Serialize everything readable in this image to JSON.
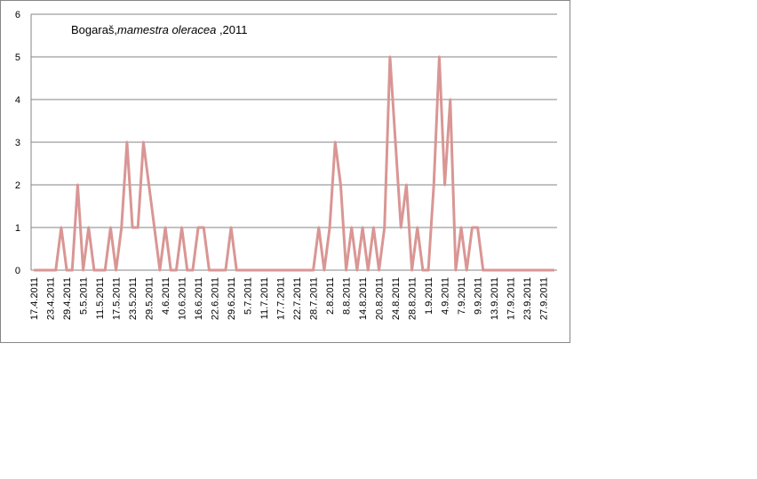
{
  "chart_data": {
    "type": "line",
    "title": [
      "Bogaraš,",
      "mamestra oleracea",
      " ,2011"
    ],
    "categories": [
      "17.4.2011",
      null,
      null,
      "23.4.2011",
      null,
      null,
      "29.4.2011",
      null,
      null,
      "5.5.2011",
      null,
      null,
      "11.5.2011",
      null,
      null,
      "17.5.2011",
      null,
      null,
      "23.5.2011",
      null,
      null,
      "29.5.2011",
      null,
      null,
      "4.6.2011",
      null,
      null,
      "10.6.2011",
      null,
      null,
      "16.6.2011",
      null,
      null,
      "22.6.2011",
      null,
      null,
      "29.6.2011",
      null,
      null,
      "5.7.2011",
      null,
      null,
      "11.7.2011",
      null,
      null,
      "17.7.2011",
      null,
      null,
      "22.7.2011",
      null,
      null,
      "28.7.2011",
      null,
      null,
      "2.8.2011",
      null,
      null,
      "8.8.2011",
      null,
      null,
      "14.8.2011",
      null,
      null,
      "20.8.2011",
      null,
      null,
      "24.8.2011",
      null,
      null,
      "28.8.2011",
      null,
      null,
      "1.9.2011",
      null,
      null,
      "4.9.2011",
      null,
      null,
      "7.9.2011",
      null,
      null,
      "9.9.2011",
      null,
      null,
      "13.9.2011",
      null,
      null,
      "17.9.2011",
      null,
      null,
      "23.9.2011",
      null,
      null,
      "27.9.2011",
      null,
      null
    ],
    "values": [
      0,
      0,
      0,
      0,
      0,
      1,
      0,
      0,
      2,
      0,
      1,
      0,
      0,
      0,
      1,
      0,
      1,
      3,
      1,
      1,
      3,
      2,
      1,
      0,
      1,
      0,
      0,
      1,
      0,
      0,
      1,
      1,
      0,
      0,
      0,
      0,
      1,
      0,
      0,
      0,
      0,
      0,
      0,
      0,
      0,
      0,
      0,
      0,
      0,
      0,
      0,
      0,
      1,
      0,
      1,
      3,
      2,
      0,
      1,
      0,
      1,
      0,
      1,
      0,
      1,
      5,
      3,
      1,
      2,
      0,
      1,
      0,
      0,
      2,
      5,
      2,
      4,
      0,
      1,
      0,
      1,
      1,
      0,
      0,
      0,
      0,
      0,
      0,
      0,
      0,
      0,
      0,
      0,
      0,
      0,
      0
    ],
    "color": "#d99694",
    "ylim": [
      0,
      6
    ],
    "yticks": [
      0,
      1,
      2,
      3,
      4,
      5,
      6
    ],
    "grid": true
  }
}
